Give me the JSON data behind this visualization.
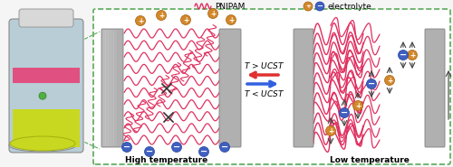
{
  "bg_color": "#f5f5f5",
  "dashed_box_color": "#5aaa5a",
  "panel_bg": "#ffffff",
  "battery_colors": {
    "body": "#b0c8d0",
    "top_cap": "#e0e0e0",
    "stripe_pink": "#e05080",
    "stripe_green": "#c8d830",
    "terminal": "#d0d0d0"
  },
  "membrane_gray": "#a0a0a0",
  "pnipam_color": "#e03060",
  "arrow_red": "#e03030",
  "arrow_blue": "#3060e0",
  "arrow_gray": "#606060",
  "cation_color": "#d4882a",
  "anion_color": "#4060c0",
  "text_high_temp": "High temperature",
  "text_low_temp": "Low temperature",
  "text_t_greater": "$T$ > UCST",
  "text_t_less": "$T$ < UCST",
  "legend_pnipam": "PNIPAM",
  "legend_electrolyte": "electrolyte",
  "title_fontsize": 7,
  "label_fontsize": 6.5
}
